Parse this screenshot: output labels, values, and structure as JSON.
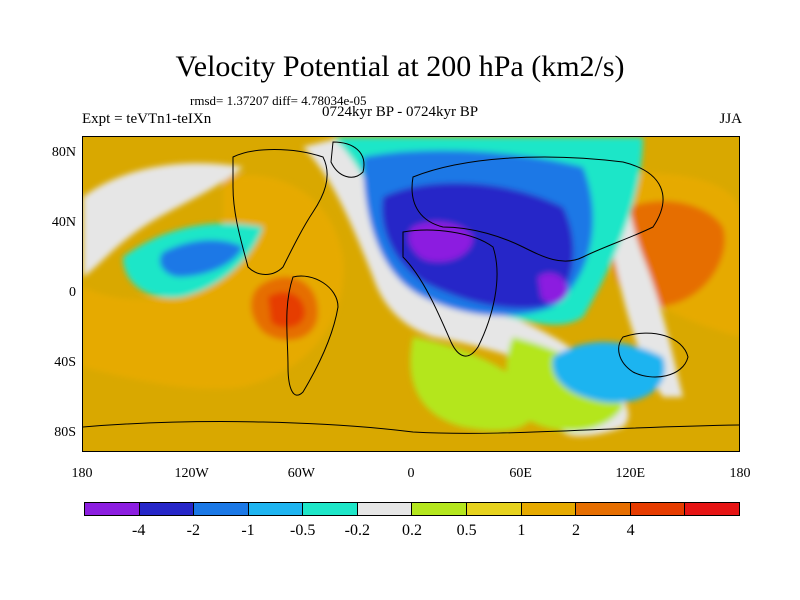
{
  "map": {
    "title": "Velocity Potential at 200 hPa (km2/s)",
    "stats": "rmsd= 1.37207 diff= 4.78034e-05",
    "left_label": "Expt = teVTn1-teIXn",
    "center_label": "0724kyr BP - 0724kyr BP",
    "right_label": "JJA",
    "lat_range": [
      -90,
      90
    ],
    "lon_range": [
      -180,
      180
    ],
    "lat_ticks": [
      {
        "label": "80N",
        "lat": 80
      },
      {
        "label": "40N",
        "lat": 40
      },
      {
        "label": "0",
        "lat": 0
      },
      {
        "label": "40S",
        "lat": -40
      },
      {
        "label": "80S",
        "lat": -80
      }
    ],
    "lon_ticks": [
      {
        "label": "180",
        "lon": -180
      },
      {
        "label": "120W",
        "lon": -120
      },
      {
        "label": "60W",
        "lon": -60
      },
      {
        "label": "0",
        "lon": 0
      },
      {
        "label": "60E",
        "lon": 60
      },
      {
        "label": "120E",
        "lon": 120
      },
      {
        "label": "180",
        "lon": 180
      }
    ],
    "colorbar": {
      "colors": [
        "#8c1ee0",
        "#2626c8",
        "#1a78e6",
        "#1eb4f0",
        "#1ee6c8",
        "#e6e6e6",
        "#b4e61e",
        "#e6d21e",
        "#e6aa00",
        "#e66e00",
        "#e63c00",
        "#e61414"
      ],
      "labels": [
        "-4",
        "-2",
        "-1",
        "-0.5",
        "-0.2",
        "0.2",
        "0.5",
        "1",
        "2",
        "4"
      ]
    }
  }
}
